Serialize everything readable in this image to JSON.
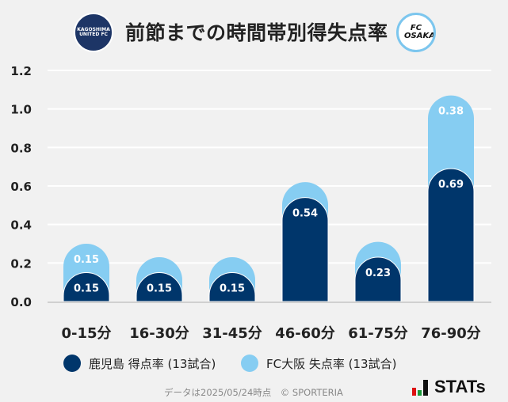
{
  "header": {
    "title": "前節までの時間帯別得失点率",
    "home_logo_text": "KAGOSHIMA UNITED FC",
    "away_logo_text": "FC OSAKA"
  },
  "colors": {
    "home": "#00366b",
    "away": "#86cdf2",
    "background": "#f1f1f1"
  },
  "chart_data": {
    "type": "bar",
    "stacked": true,
    "categories": [
      "0-15分",
      "16-30分",
      "31-45分",
      "46-60分",
      "61-75分",
      "76-90分"
    ],
    "series": [
      {
        "name": "鹿児島 得点率 (13試合)",
        "values": [
          0.15,
          0.15,
          0.15,
          0.54,
          0.23,
          0.69
        ],
        "color": "#00366b"
      },
      {
        "name": "FC大阪 失点率 (13試合)",
        "values": [
          0.15,
          0.08,
          0.08,
          0.08,
          0.08,
          0.38
        ],
        "color": "#86cdf2"
      }
    ],
    "data_labels": [
      [
        "0.15",
        "0.15",
        "0.15",
        "0.54",
        "0.23",
        "0.69"
      ],
      [
        "0.15",
        "",
        "",
        "",
        "",
        "0.38"
      ]
    ],
    "yticks": [
      "0.0",
      "0.2",
      "0.4",
      "0.6",
      "0.8",
      "1.0",
      "1.2"
    ],
    "ylim": [
      0,
      1.2
    ],
    "grid": true,
    "legend": "bottom"
  },
  "footer": {
    "note": "データは2025/05/24時点　© SPORTERIA",
    "brand": "STATs"
  }
}
